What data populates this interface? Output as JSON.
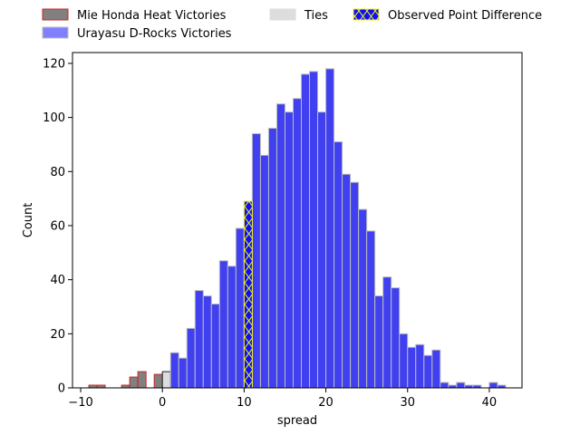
{
  "chart_data": {
    "type": "bar",
    "subtype": "histogram",
    "xlabel": "spread",
    "ylabel": "Count",
    "xlim": [
      -11,
      44
    ],
    "ylim": [
      0,
      124
    ],
    "xticks": [
      -10,
      0,
      10,
      20,
      30,
      40
    ],
    "yticks": [
      0,
      20,
      40,
      60,
      80,
      100,
      120
    ],
    "grid": false,
    "legend_position": "top, above plot, 3 columns",
    "bin_width": 1,
    "series": [
      {
        "name": "Mie Honda Heat Victories",
        "color": "#808080",
        "edge_color": "#cc2222",
        "bins": [
          {
            "x0": -9,
            "x1": -8,
            "count": 1
          },
          {
            "x0": -8,
            "x1": -7,
            "count": 1
          },
          {
            "x0": -5,
            "x1": -4,
            "count": 1
          },
          {
            "x0": -4,
            "x1": -3,
            "count": 4
          },
          {
            "x0": -3,
            "x1": -2,
            "count": 6
          },
          {
            "x0": -1,
            "x1": 0,
            "count": 5
          }
        ]
      },
      {
        "name": "Ties",
        "color": "#dddddd",
        "edge_color": "#222222",
        "bins": [
          {
            "x0": 0,
            "x1": 1,
            "count": 6
          }
        ]
      },
      {
        "name": "Urayasu D-Rocks Victories",
        "color": "#4040f0",
        "edge_color": "#bbbbbb",
        "bins": [
          {
            "x0": 1,
            "x1": 2,
            "count": 13
          },
          {
            "x0": 2,
            "x1": 3,
            "count": 11
          },
          {
            "x0": 3,
            "x1": 4,
            "count": 22
          },
          {
            "x0": 4,
            "x1": 5,
            "count": 36
          },
          {
            "x0": 5,
            "x1": 6,
            "count": 34
          },
          {
            "x0": 6,
            "x1": 7,
            "count": 31
          },
          {
            "x0": 7,
            "x1": 8,
            "count": 47
          },
          {
            "x0": 8,
            "x1": 9,
            "count": 45
          },
          {
            "x0": 9,
            "x1": 10,
            "count": 59
          },
          {
            "x0": 10,
            "x1": 11,
            "count": 69
          },
          {
            "x0": 11,
            "x1": 12,
            "count": 94
          },
          {
            "x0": 12,
            "x1": 13,
            "count": 86
          },
          {
            "x0": 13,
            "x1": 14,
            "count": 96
          },
          {
            "x0": 14,
            "x1": 15,
            "count": 105
          },
          {
            "x0": 15,
            "x1": 16,
            "count": 102
          },
          {
            "x0": 16,
            "x1": 17,
            "count": 107
          },
          {
            "x0": 17,
            "x1": 18,
            "count": 116
          },
          {
            "x0": 18,
            "x1": 19,
            "count": 117
          },
          {
            "x0": 19,
            "x1": 20,
            "count": 102
          },
          {
            "x0": 20,
            "x1": 21,
            "count": 118
          },
          {
            "x0": 21,
            "x1": 22,
            "count": 91
          },
          {
            "x0": 22,
            "x1": 23,
            "count": 79
          },
          {
            "x0": 23,
            "x1": 24,
            "count": 76
          },
          {
            "x0": 24,
            "x1": 25,
            "count": 66
          },
          {
            "x0": 25,
            "x1": 26,
            "count": 58
          },
          {
            "x0": 26,
            "x1": 27,
            "count": 34
          },
          {
            "x0": 27,
            "x1": 28,
            "count": 41
          },
          {
            "x0": 28,
            "x1": 29,
            "count": 37
          },
          {
            "x0": 29,
            "x1": 30,
            "count": 20
          },
          {
            "x0": 30,
            "x1": 31,
            "count": 15
          },
          {
            "x0": 31,
            "x1": 32,
            "count": 16
          },
          {
            "x0": 32,
            "x1": 33,
            "count": 12
          },
          {
            "x0": 33,
            "x1": 34,
            "count": 14
          },
          {
            "x0": 34,
            "x1": 35,
            "count": 2
          },
          {
            "x0": 35,
            "x1": 36,
            "count": 1
          },
          {
            "x0": 36,
            "x1": 37,
            "count": 2
          },
          {
            "x0": 37,
            "x1": 38,
            "count": 1
          },
          {
            "x0": 38,
            "x1": 39,
            "count": 1
          },
          {
            "x0": 40,
            "x1": 41,
            "count": 2
          },
          {
            "x0": 41,
            "x1": 42,
            "count": 1
          }
        ]
      },
      {
        "name": "Observed Point Difference",
        "color": "#1010ee",
        "edge_color": "#eeee22",
        "hatch": "x",
        "bins": [
          {
            "x0": 10,
            "x1": 11,
            "count": 69
          }
        ]
      }
    ],
    "legend": [
      {
        "label": "Mie Honda Heat Victories",
        "color": "#808080",
        "edge_color": "#cc2222",
        "alpha": 1.0,
        "hatch": ""
      },
      {
        "label": "Urayasu D-Rocks Victories",
        "color": "#8080ff",
        "edge_color": "#bbbbbb",
        "alpha": 1.0,
        "hatch": ""
      },
      {
        "label": "Ties",
        "color": "#dddddd",
        "edge_color": "#dddddd",
        "alpha": 1.0,
        "hatch": ""
      },
      {
        "label": "Observed Point Difference",
        "color": "#1010ee",
        "edge_color": "#eeee22",
        "alpha": 1.0,
        "hatch": "x"
      }
    ]
  }
}
